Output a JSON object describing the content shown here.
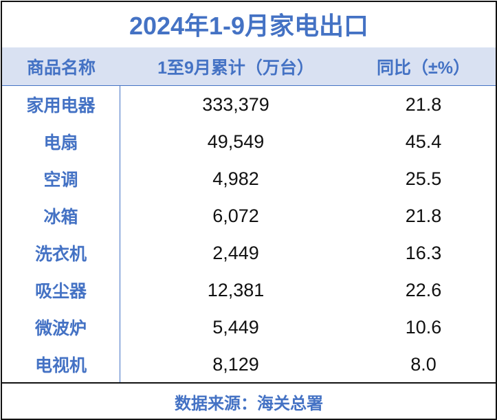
{
  "title": "2024年1-9月家电出口",
  "footer": "数据来源：海关总署",
  "colors": {
    "accent": "#4472c4",
    "header_bg": "#d9e1f2"
  },
  "chart_data": {
    "type": "table",
    "title": "2024年1-9月家电出口",
    "columns": [
      "商品名称",
      "1至9月累计（万台）",
      "同比（±%）"
    ],
    "rows": [
      [
        "家用电器",
        "333,379",
        "21.8"
      ],
      [
        "电扇",
        "49,549",
        "45.4"
      ],
      [
        "空调",
        "4,982",
        "25.5"
      ],
      [
        "冰箱",
        "6,072",
        "21.8"
      ],
      [
        "洗衣机",
        "2,449",
        "16.3"
      ],
      [
        "吸尘器",
        "12,381",
        "22.6"
      ],
      [
        "微波炉",
        "5,449",
        "10.6"
      ],
      [
        "电视机",
        "8,129",
        "8.0"
      ]
    ],
    "source": "数据来源：海关总署"
  }
}
